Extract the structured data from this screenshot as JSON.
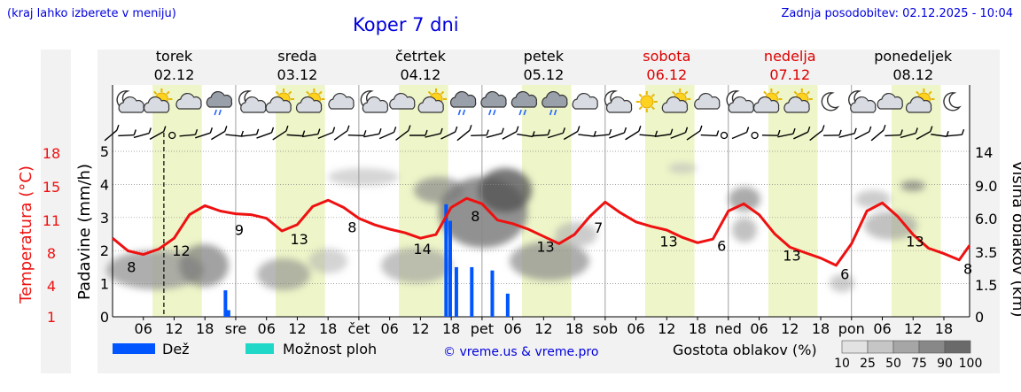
{
  "header": {
    "hint": "(kraj lahko izberete v meniju)",
    "title": "Koper 7 dni",
    "updated": "Zadnja posodobitev: 02.12.2025 - 10:04"
  },
  "days": [
    {
      "name": "torek",
      "date": "02.12",
      "weekend": false
    },
    {
      "name": "sreda",
      "date": "03.12",
      "weekend": false
    },
    {
      "name": "četrtek",
      "date": "04.12",
      "weekend": false
    },
    {
      "name": "petek",
      "date": "05.12",
      "weekend": false
    },
    {
      "name": "sobota",
      "date": "06.12",
      "weekend": true
    },
    {
      "name": "nedelja",
      "date": "07.12",
      "weekend": true
    },
    {
      "name": "ponedeljek",
      "date": "08.12",
      "weekend": false
    }
  ],
  "legend": {
    "rain": "Dež",
    "showers": "Možnost ploh",
    "copyright": "© vreme.us & vreme.pro",
    "cloud_density": "Gostota oblakov (%)",
    "cloud_ticks": [
      "10",
      "25",
      "50",
      "75",
      "90",
      "100"
    ]
  },
  "colors": {
    "rain": "#0055ff",
    "showers": "#20d8c8",
    "temperature": "#ee1111",
    "daytime": "#eef5c8",
    "title": "#0000dd",
    "weekend": "#dd0000"
  },
  "chart_data": {
    "type": "line",
    "title": "Koper 7 dni",
    "x_hours": [
      0,
      3,
      6,
      9,
      12,
      15,
      18,
      21,
      24,
      27,
      30,
      33,
      36,
      39,
      42,
      45,
      48,
      51,
      54,
      57,
      60,
      63,
      66,
      69,
      72,
      75,
      78,
      81,
      84,
      87,
      90,
      93,
      96,
      99,
      102,
      105,
      108,
      111,
      114,
      117,
      120,
      123,
      126,
      129,
      132,
      135,
      138,
      141,
      144,
      147,
      150,
      153,
      156,
      159,
      162,
      165,
      167
    ],
    "temperature_c": [
      8.6,
      7.2,
      6.8,
      7.4,
      8.6,
      11.2,
      12.2,
      11.6,
      11.3,
      11.2,
      10.8,
      9.4,
      10.1,
      12.1,
      12.8,
      12.0,
      10.8,
      10.1,
      9.6,
      9.2,
      8.6,
      9.0,
      12.0,
      13.0,
      12.4,
      10.6,
      10.2,
      9.6,
      8.8,
      8.0,
      9.0,
      11.0,
      12.6,
      11.4,
      10.4,
      9.9,
      9.5,
      8.7,
      8.1,
      8.5,
      11.6,
      12.4,
      11.2,
      9.1,
      7.6,
      7.0,
      6.4,
      5.6,
      8.0,
      11.6,
      12.5,
      11.0,
      9.0,
      7.5,
      6.9,
      6.2,
      7.8
    ],
    "temperature_min_labels": [
      {
        "hour": 3,
        "value": "8"
      },
      {
        "hour": 24,
        "value": "9"
      },
      {
        "hour": 46,
        "value": "8"
      },
      {
        "hour": 70,
        "value": "8"
      },
      {
        "hour": 94,
        "value": "7"
      },
      {
        "hour": 118,
        "value": "6"
      },
      {
        "hour": 142,
        "value": "6"
      },
      {
        "hour": 166,
        "value": "8"
      }
    ],
    "temperature_max_labels": [
      {
        "hour": 12,
        "value": "12"
      },
      {
        "hour": 35,
        "value": "13"
      },
      {
        "hour": 59,
        "value": "14"
      },
      {
        "hour": 83,
        "value": "13"
      },
      {
        "hour": 107,
        "value": "13"
      },
      {
        "hour": 131,
        "value": "13"
      },
      {
        "hour": 155,
        "value": "13"
      }
    ],
    "rain_bars": [
      {
        "hour": 22.0,
        "mm_h": 0.8
      },
      {
        "hour": 22.6,
        "mm_h": 0.2
      },
      {
        "hour": 65.0,
        "mm_h": 3.4
      },
      {
        "hour": 65.8,
        "mm_h": 2.9
      },
      {
        "hour": 67.0,
        "mm_h": 1.5
      },
      {
        "hour": 70.0,
        "mm_h": 1.5
      },
      {
        "hour": 74.0,
        "mm_h": 1.4
      },
      {
        "hour": 77.0,
        "mm_h": 0.7
      }
    ],
    "now_hour": 10,
    "x_tick_labels": [
      "06",
      "12",
      "18",
      "sre",
      "06",
      "12",
      "18",
      "čet",
      "06",
      "12",
      "18",
      "pet",
      "06",
      "12",
      "18",
      "sob",
      "06",
      "12",
      "18",
      "ned",
      "06",
      "12",
      "18",
      "pon",
      "06",
      "12",
      "18"
    ],
    "precip_axis": {
      "label": "Padavine (mm/h)",
      "ticks": [
        "0",
        "1",
        "2",
        "3",
        "4",
        "5"
      ],
      "range": [
        0,
        5
      ]
    },
    "temp_axis": {
      "label": "Temperatura (°C)",
      "ticks": [
        "1",
        "4",
        "8",
        "11",
        "15",
        "18"
      ]
    },
    "cloud_axis": {
      "label": "Višina oblakov (km)",
      "ticks": [
        "0",
        "1.5",
        "3.5",
        "6.0",
        "9.0",
        "14"
      ]
    },
    "weather_icons": [
      "moon-cloud",
      "sun-cloud",
      "cloud",
      "rain-cloud",
      "moon-cloud",
      "sun-cloud",
      "sun-cloud",
      "cloud",
      "moon-cloud",
      "cloud",
      "sun-cloud",
      "rain-cloud",
      "rain-cloud",
      "rain-cloud",
      "rain-cloud",
      "cloud",
      "moon-cloud",
      "sun",
      "sun-cloud",
      "cloud",
      "moon-cloud",
      "sun-cloud",
      "sun-cloud",
      "moon",
      "moon-cloud",
      "cloud",
      "sun-cloud",
      "moon"
    ]
  }
}
